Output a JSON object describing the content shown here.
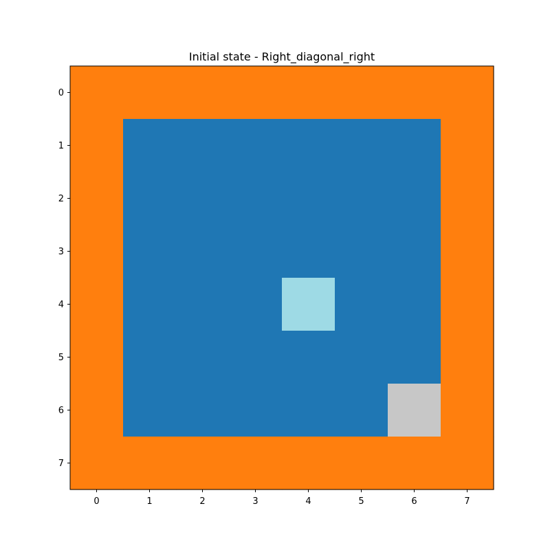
{
  "chart_data": {
    "type": "heatmap",
    "title": "Initial state - Right_diagonal_right",
    "x_ticks": [
      "0",
      "1",
      "2",
      "3",
      "4",
      "5",
      "6",
      "7"
    ],
    "y_ticks": [
      "0",
      "1",
      "2",
      "3",
      "4",
      "5",
      "6",
      "7"
    ],
    "palette": {
      "0": "#ff7f0e",
      "1": "#1f77b4",
      "2": "#9edae5",
      "3": "#c7c7c7"
    },
    "grid": [
      [
        0,
        0,
        0,
        0,
        0,
        0,
        0,
        0
      ],
      [
        0,
        1,
        1,
        1,
        1,
        1,
        1,
        0
      ],
      [
        0,
        1,
        1,
        1,
        1,
        1,
        1,
        0
      ],
      [
        0,
        1,
        1,
        1,
        1,
        1,
        1,
        0
      ],
      [
        0,
        1,
        1,
        1,
        2,
        1,
        1,
        0
      ],
      [
        0,
        1,
        1,
        1,
        1,
        1,
        1,
        0
      ],
      [
        0,
        1,
        1,
        1,
        1,
        1,
        3,
        0
      ],
      [
        0,
        0,
        0,
        0,
        0,
        0,
        0,
        0
      ]
    ]
  }
}
